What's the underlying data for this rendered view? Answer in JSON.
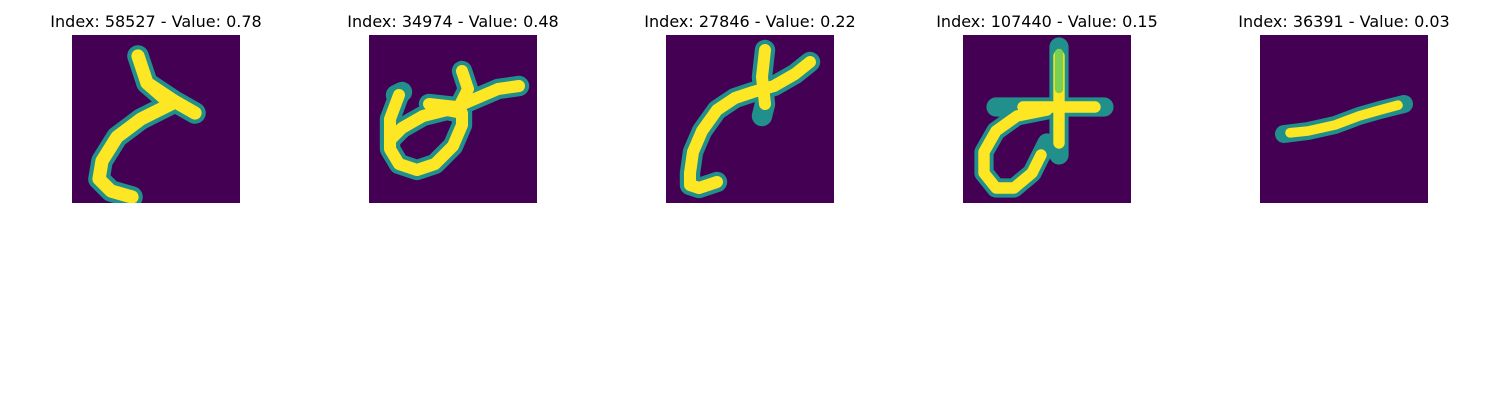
{
  "figure": {
    "panels": [
      {
        "title": "Index: 58527 - Value: 0.78",
        "image_content": "handwritten stroke resembling the digit 2 or letter lambda",
        "colors": {
          "background": "#440154",
          "stroke": "#fde725",
          "edge": "#21908c"
        }
      },
      {
        "title": "Index: 34974 - Value: 0.48",
        "image_content": "handwritten loop with crossing stroke",
        "colors": {
          "background": "#440154",
          "stroke": "#fde725",
          "edge": "#21908c"
        }
      },
      {
        "title": "Index: 27846 - Value: 0.22",
        "image_content": "handwritten curved stroke with small cross at top",
        "colors": {
          "background": "#440154",
          "stroke": "#fde725",
          "edge": "#21908c"
        }
      },
      {
        "title": "Index: 107440 - Value: 0.15",
        "image_content": "handwritten plus sign with loop at lower left",
        "colors": {
          "background": "#440154",
          "stroke": "#fde725",
          "edge": "#21908c"
        }
      },
      {
        "title": "Index: 36391 - Value: 0.03",
        "image_content": "handwritten diagonal dash",
        "colors": {
          "background": "#440154",
          "stroke": "#fde725",
          "edge": "#21908c"
        }
      }
    ]
  }
}
